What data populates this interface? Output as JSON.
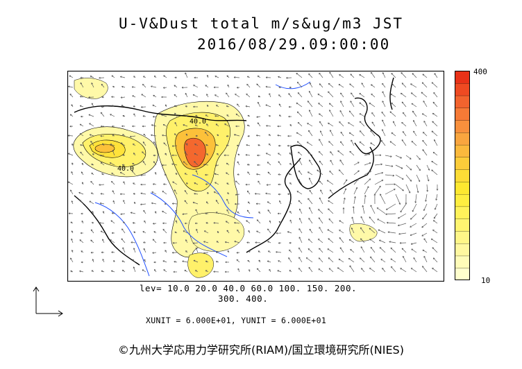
{
  "header": {
    "title": "U-V&Dust total m/s&ug/m3 JST",
    "datetime": "2016/08/29.09:00:00"
  },
  "colorbar": {
    "max_label": "400",
    "min_label": "10",
    "colors": [
      "#ffffcc",
      "#fffcb8",
      "#fff8a0",
      "#fff688",
      "#fff570",
      "#fff25a",
      "#ffee40",
      "#fee830",
      "#fddc36",
      "#fccc3a",
      "#fbb93d",
      "#f9a53f",
      "#f8903d",
      "#f67a36",
      "#f2632e",
      "#ee4a22",
      "#e83218"
    ]
  },
  "levels": {
    "line1": "lev= 10.0 20.0 40.0 60.0 100. 150. 200.",
    "line2": "300. 400."
  },
  "units": "XUNIT = 6.000E+01, YUNIT = 6.000E+01",
  "contour_labels": [
    "40.0",
    "40.0"
  ],
  "copyright": "©九州大学応用力学研究所(RIAM)/国立環境研究所(NIES)",
  "style": {
    "coast": "#000000",
    "river": "#1f4fff",
    "contour": "#000000"
  }
}
